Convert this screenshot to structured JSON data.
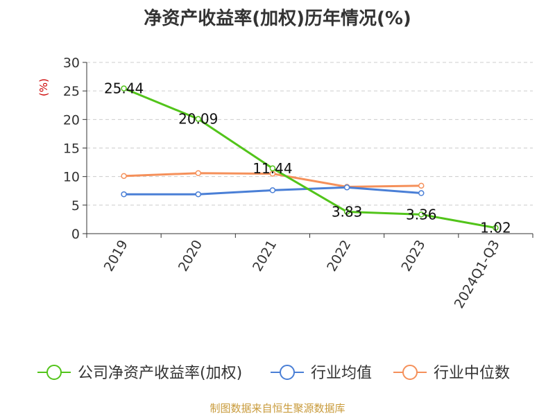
{
  "title": "净资产收益率(加权)历年情况(%)",
  "footer": "制图数据来自恒生聚源数据库",
  "colors": {
    "roe": "#52c41a",
    "industry_avg": "#4a7fd6",
    "industry_median": "#f5905a",
    "grid": "#cccccc",
    "axis": "#333333",
    "unit_label": "#cc0000"
  },
  "chart_data": {
    "type": "line",
    "categories": [
      "2019",
      "2020",
      "2021",
      "2022",
      "2023",
      "2024Q1-Q3"
    ],
    "ylabel": "(%)",
    "ylim": [
      0,
      30
    ],
    "yticks": [
      0,
      5,
      10,
      15,
      20,
      25,
      30
    ],
    "grid": true,
    "legend_position": "bottom",
    "series": [
      {
        "name": "公司净资产收益率(加权)",
        "key": "roe",
        "values": [
          25.44,
          20.09,
          11.44,
          3.83,
          3.36,
          1.02
        ],
        "labels": [
          "25.44",
          "20.09",
          "11.44",
          "3.83",
          "3.36",
          "1.02"
        ]
      },
      {
        "name": "行业均值",
        "key": "industry_avg",
        "values": [
          6.9,
          6.9,
          7.6,
          8.1,
          7.1,
          null
        ]
      },
      {
        "name": "行业中位数",
        "key": "industry_median",
        "values": [
          10.1,
          10.6,
          10.5,
          8.2,
          8.4,
          null
        ]
      }
    ]
  }
}
